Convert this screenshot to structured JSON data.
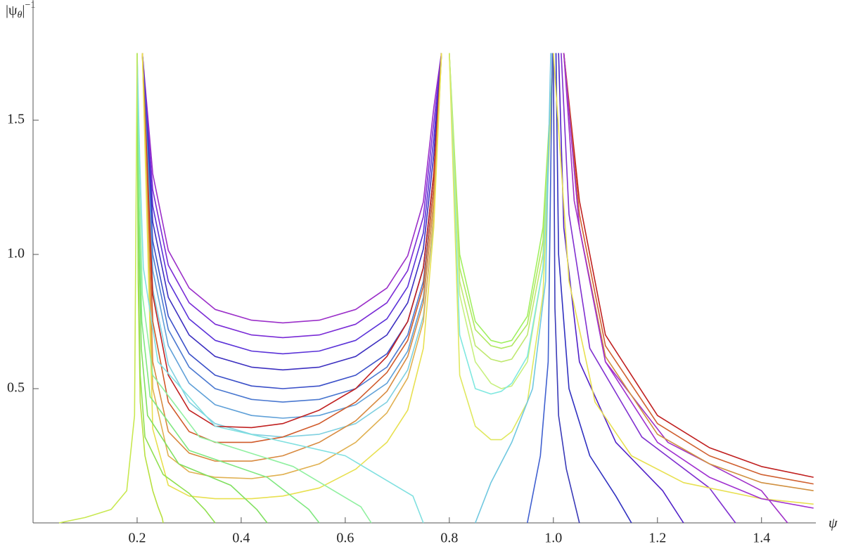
{
  "chart_data": {
    "type": "line",
    "x_label": "ψ",
    "y_label": {
      "base": "|ψ",
      "sub": "θ",
      "close": "|",
      "sup": "−1"
    },
    "xlim": [
      0,
      1.545
    ],
    "ylim": [
      0,
      1.754
    ],
    "xticks": [
      0.2,
      0.4,
      0.6,
      0.8,
      {
        "value": 1,
        "label": "1.0"
      },
      1.2,
      1.4
    ],
    "yticks": [
      0.5,
      {
        "value": 1,
        "label": "1.0"
      },
      1.5
    ],
    "series": [
      {
        "color": "#9b2fc9",
        "x": [
          0.21,
          0.23,
          0.26,
          0.3,
          0.35,
          0.42,
          0.48,
          0.55,
          0.62,
          0.68,
          0.72,
          0.75,
          0.77,
          0.785
        ],
        "values": [
          1.75,
          1.3,
          1.015,
          0.875,
          0.795,
          0.755,
          0.745,
          0.755,
          0.795,
          0.875,
          0.995,
          1.195,
          1.545,
          1.75
        ]
      },
      {
        "color": "#7a2bd6",
        "x": [
          0.21,
          0.23,
          0.26,
          0.3,
          0.35,
          0.42,
          0.48,
          0.55,
          0.62,
          0.68,
          0.72,
          0.75,
          0.77,
          0.785
        ],
        "values": [
          1.75,
          1.24,
          0.96,
          0.82,
          0.74,
          0.7,
          0.69,
          0.7,
          0.74,
          0.82,
          0.94,
          1.14,
          1.49,
          1.75
        ]
      },
      {
        "color": "#5a32d8",
        "x": [
          0.21,
          0.23,
          0.26,
          0.3,
          0.35,
          0.42,
          0.48,
          0.55,
          0.62,
          0.68,
          0.72,
          0.75,
          0.77,
          0.785
        ],
        "values": [
          1.75,
          1.18,
          0.9,
          0.76,
          0.68,
          0.64,
          0.63,
          0.64,
          0.68,
          0.76,
          0.88,
          1.08,
          1.43,
          1.75
        ]
      },
      {
        "color": "#3c2fc0",
        "x": [
          0.21,
          0.23,
          0.26,
          0.3,
          0.35,
          0.42,
          0.48,
          0.55,
          0.62,
          0.68,
          0.72,
          0.75,
          0.77,
          0.785
        ],
        "values": [
          1.75,
          1.12,
          0.84,
          0.7,
          0.62,
          0.58,
          0.57,
          0.58,
          0.62,
          0.7,
          0.82,
          1.02,
          1.37,
          1.75
        ]
      },
      {
        "color": "#3a4fc8",
        "x": [
          0.21,
          0.23,
          0.26,
          0.3,
          0.35,
          0.42,
          0.48,
          0.55,
          0.62,
          0.68,
          0.72,
          0.75,
          0.77,
          0.785
        ],
        "values": [
          1.75,
          1.05,
          0.77,
          0.63,
          0.55,
          0.51,
          0.5,
          0.51,
          0.55,
          0.63,
          0.75,
          0.95,
          1.3,
          1.75
        ]
      },
      {
        "color": "#4a78d0",
        "x": [
          0.21,
          0.23,
          0.26,
          0.3,
          0.35,
          0.42,
          0.48,
          0.55,
          0.62,
          0.68,
          0.72,
          0.75,
          0.77,
          0.785
        ],
        "values": [
          1.75,
          1.0,
          0.72,
          0.58,
          0.5,
          0.46,
          0.45,
          0.46,
          0.5,
          0.58,
          0.7,
          0.9,
          1.25,
          1.75
        ]
      },
      {
        "color": "#5fa0d8",
        "x": [
          0.21,
          0.23,
          0.26,
          0.3,
          0.35,
          0.42,
          0.48,
          0.55,
          0.62,
          0.68,
          0.72,
          0.75,
          0.77,
          0.785
        ],
        "values": [
          1.75,
          0.94,
          0.66,
          0.52,
          0.44,
          0.4,
          0.39,
          0.4,
          0.44,
          0.52,
          0.64,
          0.84,
          1.19,
          1.75
        ]
      },
      {
        "color": "#7fd0e0",
        "x": [
          0.21,
          0.23,
          0.26,
          0.3,
          0.35,
          0.42,
          0.48,
          0.55,
          0.62,
          0.68,
          0.72,
          0.75,
          0.77,
          0.785
        ],
        "values": [
          1.75,
          0.87,
          0.59,
          0.45,
          0.37,
          0.33,
          0.32,
          0.33,
          0.37,
          0.45,
          0.57,
          0.77,
          1.12,
          1.75
        ]
      },
      {
        "color": "#c02020",
        "x": [
          0.21,
          0.23,
          0.26,
          0.3,
          0.35,
          0.42,
          0.48,
          0.55,
          0.62,
          0.68,
          0.72,
          0.75,
          0.77,
          0.785
        ],
        "values": [
          1.75,
          0.85,
          0.55,
          0.42,
          0.36,
          0.355,
          0.37,
          0.42,
          0.5,
          0.62,
          0.75,
          0.95,
          1.3,
          1.75
        ]
      },
      {
        "color": "#d05a2a",
        "x": [
          0.21,
          0.23,
          0.26,
          0.3,
          0.35,
          0.42,
          0.48,
          0.55,
          0.62,
          0.68,
          0.72,
          0.75,
          0.77,
          0.785
        ],
        "values": [
          1.75,
          0.75,
          0.45,
          0.34,
          0.3,
          0.3,
          0.32,
          0.37,
          0.45,
          0.56,
          0.68,
          0.88,
          1.25,
          1.75
        ]
      },
      {
        "color": "#d88a40",
        "x": [
          0.21,
          0.23,
          0.26,
          0.3,
          0.35,
          0.42,
          0.48,
          0.55,
          0.62,
          0.68,
          0.72,
          0.75,
          0.77,
          0.785
        ],
        "values": [
          1.75,
          0.6,
          0.34,
          0.26,
          0.23,
          0.23,
          0.25,
          0.3,
          0.38,
          0.49,
          0.62,
          0.82,
          1.2,
          1.75
        ]
      },
      {
        "color": "#e0b050",
        "x": [
          0.21,
          0.23,
          0.26,
          0.3,
          0.35,
          0.42,
          0.48,
          0.55,
          0.62,
          0.68,
          0.72,
          0.75,
          0.77,
          0.785
        ],
        "values": [
          1.75,
          0.5,
          0.25,
          0.19,
          0.17,
          0.165,
          0.18,
          0.22,
          0.3,
          0.41,
          0.54,
          0.75,
          1.15,
          1.75
        ]
      },
      {
        "color": "#e8e050",
        "x": [
          0.21,
          0.23,
          0.26,
          0.3,
          0.35,
          0.42,
          0.48,
          0.55,
          0.62,
          0.68,
          0.72,
          0.75,
          0.77,
          0.785
        ],
        "values": [
          1.75,
          0.35,
          0.14,
          0.1,
          0.09,
          0.09,
          0.1,
          0.13,
          0.2,
          0.3,
          0.42,
          0.65,
          1.1,
          1.75
        ]
      },
      {
        "color": "#b8e040",
        "x": [
          0.2,
          0.202,
          0.206,
          0.215,
          0.23,
          0.24,
          0.248,
          0.25
        ],
        "values": [
          1.75,
          0.9,
          0.45,
          0.25,
          0.12,
          0.06,
          0.02,
          0
        ]
      },
      {
        "color": "#90e050",
        "x": [
          0.2,
          0.202,
          0.206,
          0.215,
          0.25,
          0.3,
          0.33,
          0.35
        ],
        "values": [
          1.75,
          1.0,
          0.55,
          0.32,
          0.18,
          0.11,
          0.05,
          0
        ]
      },
      {
        "color": "#80e060",
        "x": [
          0.2,
          0.203,
          0.208,
          0.22,
          0.28,
          0.38,
          0.43,
          0.45
        ],
        "values": [
          1.75,
          1.1,
          0.65,
          0.4,
          0.22,
          0.14,
          0.05,
          0
        ]
      },
      {
        "color": "#80e880",
        "x": [
          0.2,
          0.203,
          0.209,
          0.225,
          0.3,
          0.45,
          0.53,
          0.55
        ],
        "values": [
          1.75,
          1.2,
          0.75,
          0.47,
          0.27,
          0.17,
          0.05,
          0
        ]
      },
      {
        "color": "#90f0a0",
        "x": [
          0.2,
          0.204,
          0.21,
          0.23,
          0.32,
          0.5,
          0.63,
          0.65
        ],
        "values": [
          1.75,
          1.3,
          0.85,
          0.55,
          0.32,
          0.21,
          0.06,
          0
        ]
      },
      {
        "color": "#80e0e0",
        "x": [
          0.2,
          0.205,
          0.212,
          0.24,
          0.35,
          0.6,
          0.73,
          0.75
        ],
        "values": [
          1.75,
          1.35,
          0.95,
          0.6,
          0.36,
          0.25,
          0.1,
          0
        ]
      },
      {
        "color": "#c8e850",
        "x": [
          0.05,
          0.1,
          0.15,
          0.18,
          0.195,
          0.2
        ],
        "values": [
          0,
          0.02,
          0.05,
          0.12,
          0.4,
          1.75
        ]
      },
      {
        "color": "#a0f060",
        "x": [
          0.8,
          0.82,
          0.85,
          0.88,
          0.9,
          0.92,
          0.95,
          0.98,
          1.0
        ],
        "values": [
          1.75,
          1.0,
          0.75,
          0.68,
          0.67,
          0.68,
          0.77,
          1.1,
          1.75
        ]
      },
      {
        "color": "#b0e860",
        "x": [
          0.8,
          0.82,
          0.85,
          0.88,
          0.9,
          0.92,
          0.95,
          0.98,
          1.0
        ],
        "values": [
          1.75,
          0.95,
          0.72,
          0.66,
          0.65,
          0.66,
          0.74,
          1.05,
          1.75
        ]
      },
      {
        "color": "#c0e870",
        "x": [
          0.8,
          0.82,
          0.85,
          0.88,
          0.9,
          0.92,
          0.95,
          0.98,
          1.0
        ],
        "values": [
          1.75,
          0.9,
          0.66,
          0.61,
          0.6,
          0.61,
          0.7,
          1.0,
          1.75
        ]
      },
      {
        "color": "#c8f080",
        "x": [
          0.8,
          0.82,
          0.85,
          0.88,
          0.9,
          0.92,
          0.95,
          0.98,
          1.0
        ],
        "values": [
          1.75,
          0.85,
          0.6,
          0.52,
          0.5,
          0.51,
          0.6,
          0.95,
          1.75
        ]
      },
      {
        "color": "#80e8e0",
        "x": [
          0.8,
          0.82,
          0.85,
          0.88,
          0.9,
          0.92,
          0.95,
          0.98,
          1.0
        ],
        "values": [
          1.75,
          0.7,
          0.5,
          0.48,
          0.49,
          0.52,
          0.62,
          0.95,
          1.75
        ]
      },
      {
        "color": "#e0e860",
        "x": [
          0.8,
          0.82,
          0.85,
          0.88,
          0.9,
          0.92,
          0.95,
          0.98,
          1.0
        ],
        "values": [
          1.75,
          0.55,
          0.36,
          0.31,
          0.31,
          0.34,
          0.45,
          0.85,
          1.75
        ]
      },
      {
        "color": "#70c8e0",
        "x": [
          0.85,
          0.88,
          0.92,
          0.96,
          0.985,
          0.995
        ],
        "values": [
          0,
          0.15,
          0.3,
          0.5,
          0.9,
          1.75
        ]
      },
      {
        "color": "#4060d0",
        "x": [
          0.95,
          0.96,
          0.975,
          0.99,
          0.998
        ],
        "values": [
          0,
          0.1,
          0.25,
          0.6,
          1.75
        ]
      },
      {
        "color": "#3a3ab8",
        "x": [
          1.0,
          1.003,
          1.01,
          1.025,
          1.04,
          1.05
        ],
        "values": [
          1.75,
          0.8,
          0.4,
          0.2,
          0.08,
          0
        ]
      },
      {
        "color": "#3030c0",
        "x": [
          1.005,
          1.01,
          1.03,
          1.07,
          1.12,
          1.15
        ],
        "values": [
          1.75,
          1.0,
          0.5,
          0.25,
          0.1,
          0
        ]
      },
      {
        "color": "#5020c8",
        "x": [
          1.01,
          1.02,
          1.05,
          1.12,
          1.21,
          1.25
        ],
        "values": [
          1.75,
          1.1,
          0.6,
          0.3,
          0.12,
          0
        ]
      },
      {
        "color": "#8030d0",
        "x": [
          1.015,
          1.03,
          1.07,
          1.17,
          1.3,
          1.35
        ],
        "values": [
          1.75,
          1.15,
          0.65,
          0.32,
          0.13,
          0
        ]
      },
      {
        "color": "#a030c8",
        "x": [
          1.02,
          1.04,
          1.1,
          1.22,
          1.4,
          1.45
        ],
        "values": [
          1.75,
          1.2,
          0.6,
          0.3,
          0.12,
          0
        ]
      },
      {
        "color": "#c02020",
        "x": [
          1.02,
          1.05,
          1.1,
          1.2,
          1.3,
          1.4,
          1.5
        ],
        "values": [
          1.75,
          1.2,
          0.7,
          0.4,
          0.28,
          0.21,
          0.17
        ]
      },
      {
        "color": "#d06030",
        "x": [
          1.02,
          1.05,
          1.1,
          1.2,
          1.3,
          1.4,
          1.5
        ],
        "values": [
          1.75,
          1.15,
          0.66,
          0.37,
          0.25,
          0.18,
          0.145
        ]
      },
      {
        "color": "#d09040",
        "x": [
          1.02,
          1.05,
          1.1,
          1.2,
          1.3,
          1.4,
          1.5
        ],
        "values": [
          1.75,
          1.1,
          0.62,
          0.33,
          0.22,
          0.15,
          0.12
        ]
      },
      {
        "color": "#e8e050",
        "x": [
          1.0,
          1.03,
          1.08,
          1.15,
          1.25,
          1.4,
          1.5
        ],
        "values": [
          1.75,
          0.9,
          0.45,
          0.25,
          0.15,
          0.09,
          0.07
        ]
      },
      {
        "color": "#a030d0",
        "x": [
          1.02,
          1.05,
          1.1,
          1.2,
          1.3,
          1.4,
          1.5
        ],
        "values": [
          1.75,
          1.1,
          0.6,
          0.3,
          0.17,
          0.09,
          0.055
        ]
      }
    ]
  }
}
